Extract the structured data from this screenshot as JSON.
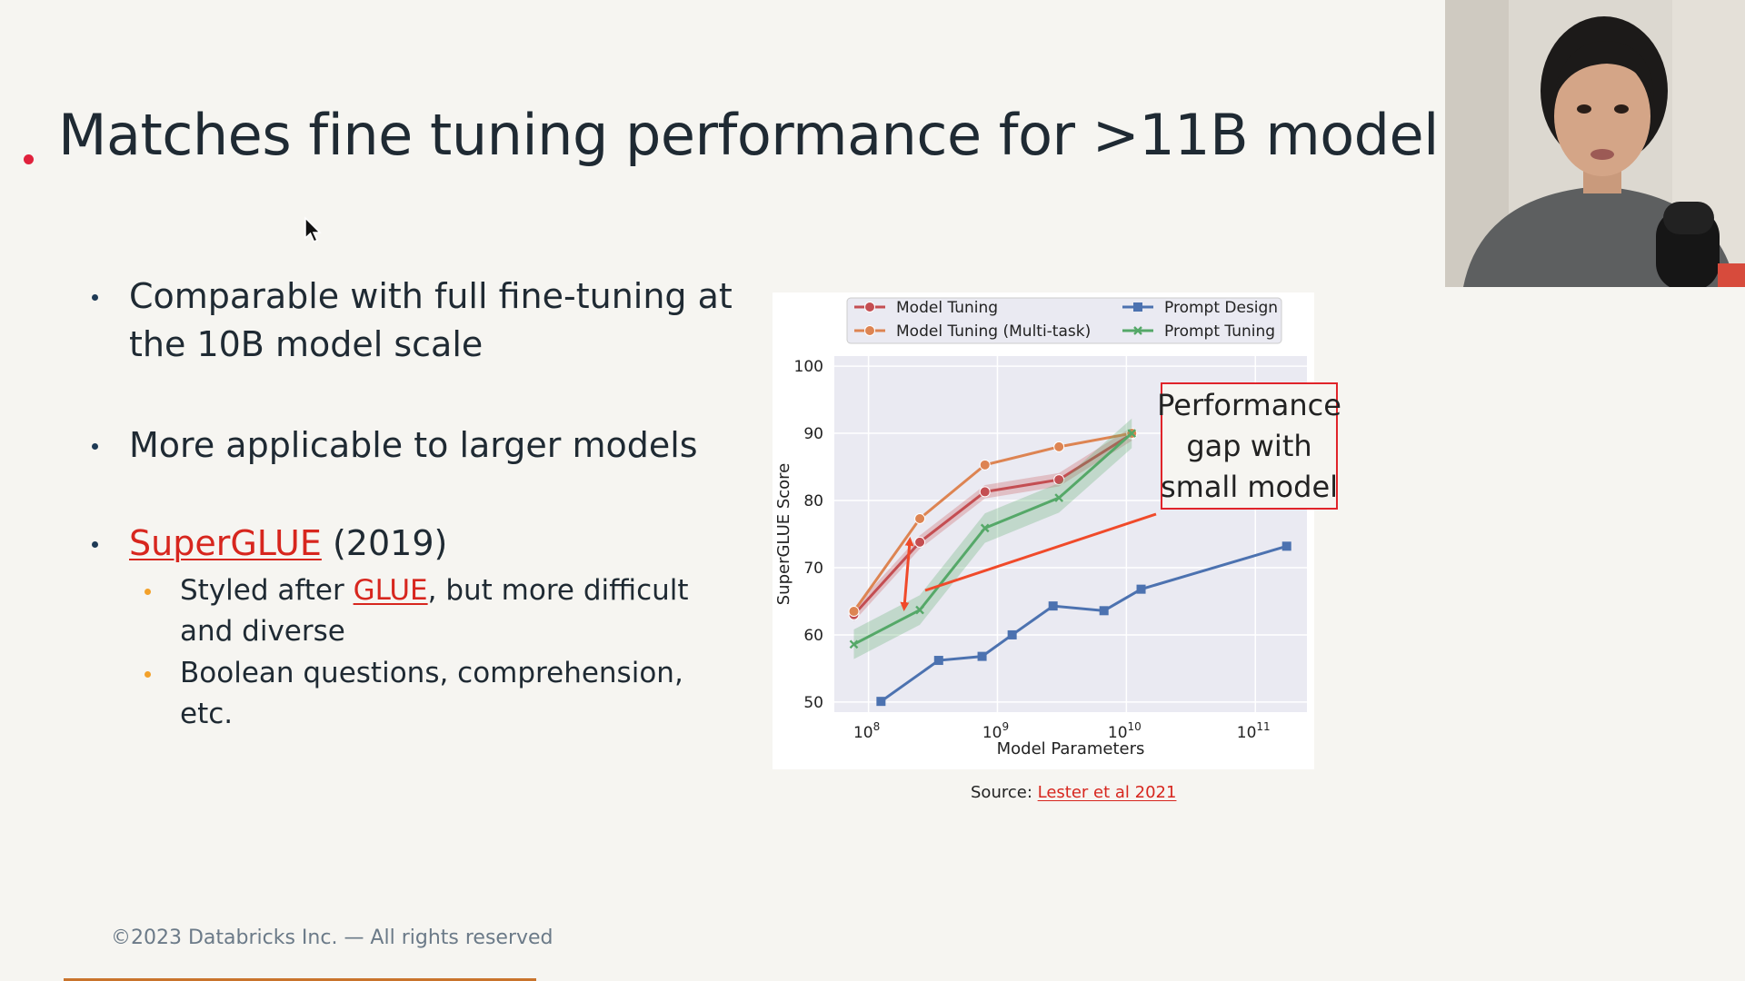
{
  "slide": {
    "title": "Matches fine tuning performance for >11B model",
    "bullets": [
      {
        "text": "Comparable with full fine-tuning at the 10B model scale"
      },
      {
        "text": "More applicable to larger models"
      },
      {
        "link": "SuperGLUE",
        "suffix": " (2019)"
      }
    ],
    "sub_bullets": [
      {
        "before": "Styled after ",
        "link": "GLUE",
        "after": ", but more difficult and diverse"
      },
      {
        "text": "Boolean questions, comprehension, etc."
      }
    ],
    "source_label": "Source: ",
    "source_link": "Lester et al 2021",
    "annotation": "Performance gap with small model",
    "footer": "©2023 Databricks Inc. — All rights reserved"
  },
  "colors": {
    "accent_red": "#e0213c",
    "link_red": "#d7261e",
    "bullet_navy": "#1e3a55",
    "bullet_orange": "#f3a12a",
    "model_tuning": "#c44e52",
    "model_tuning_multitask": "#dd8452",
    "prompt_design": "#4c72b0",
    "prompt_tuning": "#55a868"
  },
  "chart_data": {
    "type": "line",
    "xscale": "log",
    "xlabel": "Model Parameters",
    "ylabel": "SuperGLUE Score",
    "ylim": [
      50,
      100
    ],
    "yticks": [
      50,
      60,
      70,
      80,
      90,
      100
    ],
    "xticks": [
      {
        "value": 100000000,
        "base": "10",
        "exp": "8"
      },
      {
        "value": 1000000000,
        "base": "10",
        "exp": "9"
      },
      {
        "value": 10000000000,
        "base": "10",
        "exp": "10"
      },
      {
        "value": 100000000000,
        "base": "10",
        "exp": "11"
      }
    ],
    "grid": true,
    "legend_position": "top",
    "series": [
      {
        "name": "Model Tuning",
        "marker": "circle",
        "color": "#c44e52",
        "x": [
          77000000,
          250000000,
          800000000,
          3000000000,
          11000000000
        ],
        "y": [
          63.0,
          73.8,
          81.3,
          83.1,
          89.9
        ]
      },
      {
        "name": "Model Tuning (Multi-task)",
        "marker": "circle",
        "color": "#dd8452",
        "x": [
          77000000,
          250000000,
          800000000,
          3000000000,
          11000000000
        ],
        "y": [
          63.5,
          77.3,
          85.3,
          88.0,
          90.0
        ]
      },
      {
        "name": "Prompt Design",
        "marker": "square",
        "color": "#4c72b0",
        "x": [
          125000000,
          350000000,
          760000000,
          1300000000,
          2700000000,
          6700000000,
          13000000000,
          175000000000
        ],
        "y": [
          50.1,
          56.2,
          56.8,
          60.0,
          64.3,
          63.6,
          66.8,
          73.2
        ]
      },
      {
        "name": "Prompt Tuning",
        "marker": "x",
        "color": "#55a868",
        "x": [
          77000000,
          250000000,
          800000000,
          3000000000,
          11000000000
        ],
        "y": [
          58.6,
          63.7,
          75.9,
          80.4,
          90.0
        ]
      }
    ]
  }
}
